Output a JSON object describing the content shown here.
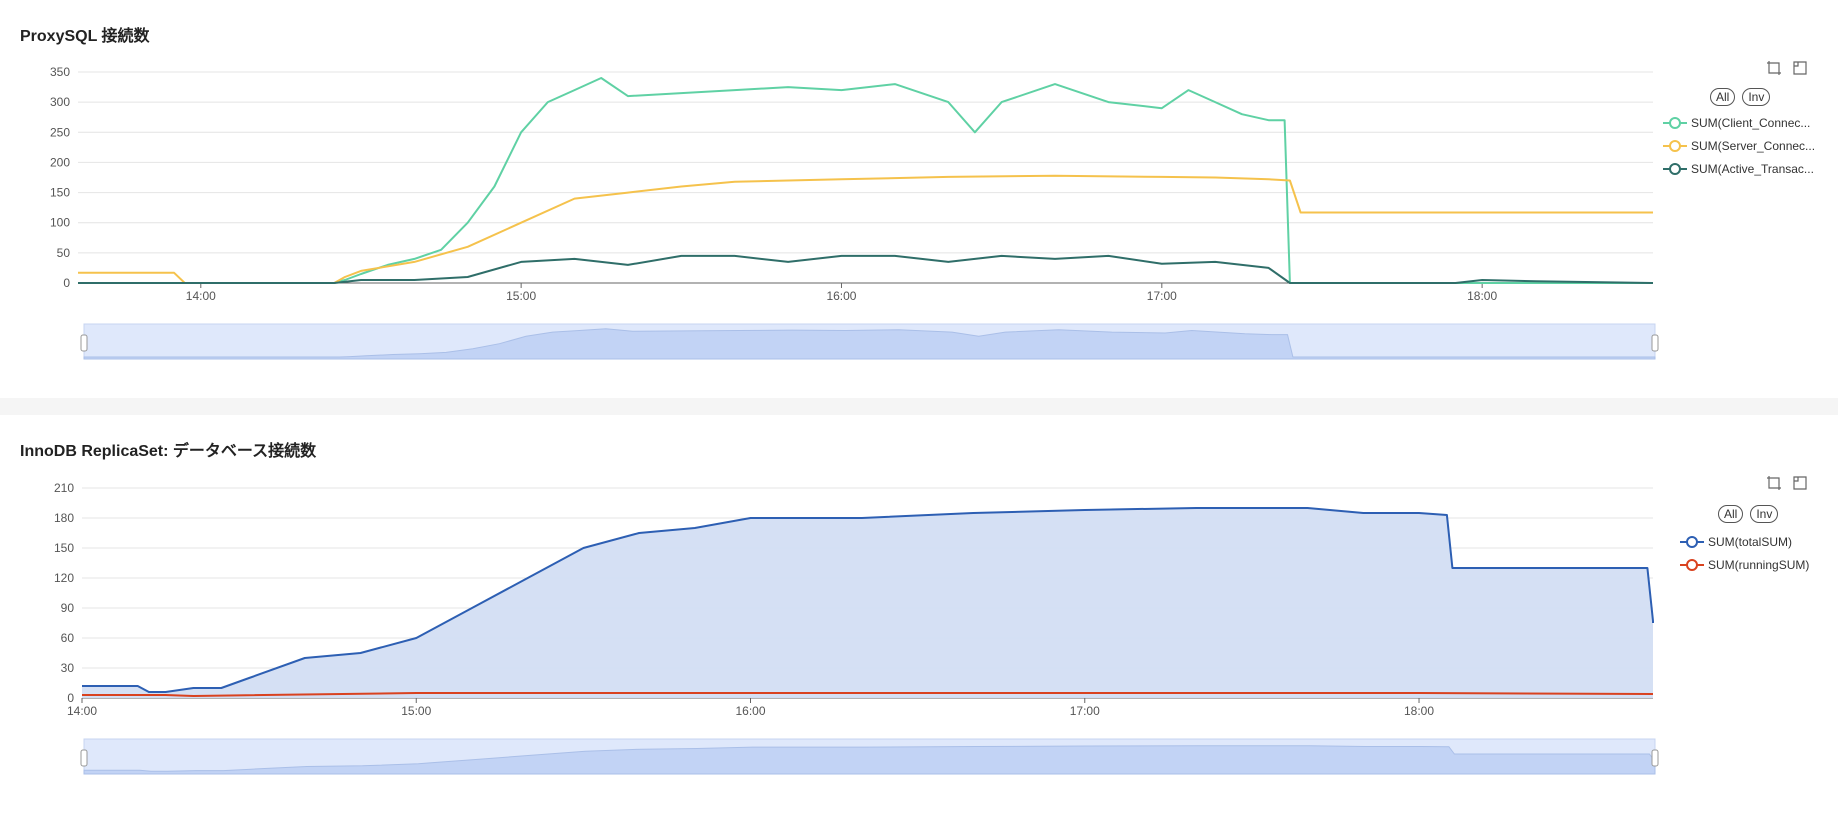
{
  "panels": [
    {
      "title": "ProxySQL 接続数",
      "legend_buttons": {
        "all": "All",
        "inv": "Inv"
      },
      "toolbox": [
        "zoom-icon",
        "zoom-reset-icon"
      ]
    },
    {
      "title": "InnoDB ReplicaSet: データベース接続数",
      "legend_buttons": {
        "all": "All",
        "inv": "Inv"
      },
      "toolbox": [
        "zoom-icon",
        "zoom-reset-icon"
      ]
    }
  ],
  "chart_data": [
    {
      "type": "line",
      "title": "ProxySQL 接続数",
      "x_ticks": [
        "14:00",
        "15:00",
        "16:00",
        "17:00",
        "18:00"
      ],
      "x_range": [
        "13:37",
        "18:32"
      ],
      "ylim": [
        0,
        350
      ],
      "y_ticks": [
        0,
        50,
        100,
        150,
        200,
        250,
        300,
        350
      ],
      "grid": true,
      "legend_position": "right",
      "dataZoom": true,
      "series": [
        {
          "name": "SUM(Client_Connec...",
          "color": "#5fd1a4",
          "points": [
            [
              "13:37",
              0
            ],
            [
              "14:25",
              0
            ],
            [
              "14:27",
              5
            ],
            [
              "14:30",
              15
            ],
            [
              "14:35",
              30
            ],
            [
              "14:40",
              40
            ],
            [
              "14:45",
              55
            ],
            [
              "14:50",
              100
            ],
            [
              "14:55",
              160
            ],
            [
              "15:00",
              250
            ],
            [
              "15:05",
              300
            ],
            [
              "15:10",
              320
            ],
            [
              "15:15",
              340
            ],
            [
              "15:20",
              310
            ],
            [
              "15:30",
              315
            ],
            [
              "15:40",
              320
            ],
            [
              "15:50",
              325
            ],
            [
              "16:00",
              320
            ],
            [
              "16:10",
              330
            ],
            [
              "16:20",
              300
            ],
            [
              "16:25",
              250
            ],
            [
              "16:30",
              300
            ],
            [
              "16:40",
              330
            ],
            [
              "16:50",
              300
            ],
            [
              "17:00",
              290
            ],
            [
              "17:05",
              320
            ],
            [
              "17:10",
              300
            ],
            [
              "17:15",
              280
            ],
            [
              "17:20",
              270
            ],
            [
              "17:23",
              270
            ],
            [
              "17:24",
              0
            ],
            [
              "18:32",
              0
            ]
          ]
        },
        {
          "name": "SUM(Server_Connec...",
          "color": "#f5c24c",
          "points": [
            [
              "13:37",
              17
            ],
            [
              "13:55",
              17
            ],
            [
              "13:57",
              0
            ],
            [
              "14:25",
              0
            ],
            [
              "14:27",
              10
            ],
            [
              "14:30",
              20
            ],
            [
              "14:40",
              35
            ],
            [
              "14:50",
              60
            ],
            [
              "15:00",
              100
            ],
            [
              "15:10",
              140
            ],
            [
              "15:20",
              150
            ],
            [
              "15:30",
              160
            ],
            [
              "15:40",
              168
            ],
            [
              "16:00",
              172
            ],
            [
              "16:20",
              176
            ],
            [
              "16:40",
              178
            ],
            [
              "17:00",
              176
            ],
            [
              "17:10",
              175
            ],
            [
              "17:20",
              172
            ],
            [
              "17:24",
              170
            ],
            [
              "17:26",
              117
            ],
            [
              "18:32",
              117
            ]
          ]
        },
        {
          "name": "SUM(Active_Transac...",
          "color": "#2f6e69",
          "points": [
            [
              "13:37",
              0
            ],
            [
              "14:25",
              0
            ],
            [
              "14:30",
              5
            ],
            [
              "14:40",
              5
            ],
            [
              "14:50",
              10
            ],
            [
              "15:00",
              35
            ],
            [
              "15:10",
              40
            ],
            [
              "15:20",
              30
            ],
            [
              "15:30",
              45
            ],
            [
              "15:40",
              45
            ],
            [
              "15:50",
              35
            ],
            [
              "16:00",
              45
            ],
            [
              "16:10",
              45
            ],
            [
              "16:20",
              35
            ],
            [
              "16:30",
              45
            ],
            [
              "16:40",
              40
            ],
            [
              "16:50",
              45
            ],
            [
              "17:00",
              32
            ],
            [
              "17:10",
              35
            ],
            [
              "17:20",
              25
            ],
            [
              "17:24",
              0
            ],
            [
              "17:55",
              0
            ],
            [
              "18:00",
              5
            ],
            [
              "18:10",
              3
            ],
            [
              "18:32",
              0
            ]
          ]
        }
      ]
    },
    {
      "type": "area",
      "title": "InnoDB ReplicaSet: データベース接続数",
      "x_ticks": [
        "14:00",
        "15:00",
        "16:00",
        "17:00",
        "18:00"
      ],
      "x_range": [
        "14:00",
        "18:42"
      ],
      "ylim": [
        0,
        210
      ],
      "y_ticks": [
        0,
        30,
        60,
        90,
        120,
        150,
        180,
        210
      ],
      "grid": true,
      "legend_position": "right",
      "dataZoom": true,
      "series": [
        {
          "name": "SUM(totalSUM)",
          "color": "#2d5fb3",
          "fill": "#d3def3",
          "points": [
            [
              "14:00",
              12
            ],
            [
              "14:05",
              12
            ],
            [
              "14:10",
              12
            ],
            [
              "14:12",
              6
            ],
            [
              "14:15",
              6
            ],
            [
              "14:20",
              10
            ],
            [
              "14:25",
              10
            ],
            [
              "14:30",
              20
            ],
            [
              "14:40",
              40
            ],
            [
              "14:50",
              45
            ],
            [
              "15:00",
              60
            ],
            [
              "15:10",
              90
            ],
            [
              "15:20",
              120
            ],
            [
              "15:30",
              150
            ],
            [
              "15:40",
              165
            ],
            [
              "15:50",
              170
            ],
            [
              "16:00",
              180
            ],
            [
              "16:20",
              180
            ],
            [
              "16:40",
              185
            ],
            [
              "17:00",
              188
            ],
            [
              "17:20",
              190
            ],
            [
              "17:40",
              190
            ],
            [
              "17:50",
              185
            ],
            [
              "18:00",
              185
            ],
            [
              "18:05",
              183
            ],
            [
              "18:06",
              130
            ],
            [
              "18:30",
              130
            ],
            [
              "18:41",
              130
            ],
            [
              "18:42",
              77
            ],
            [
              "18:42",
              75
            ]
          ]
        },
        {
          "name": "SUM(runningSUM)",
          "color": "#d9421f",
          "points": [
            [
              "14:00",
              3
            ],
            [
              "14:15",
              3
            ],
            [
              "14:20",
              2
            ],
            [
              "15:00",
              5
            ],
            [
              "16:00",
              5
            ],
            [
              "17:00",
              5
            ],
            [
              "18:00",
              5
            ],
            [
              "18:42",
              4
            ]
          ]
        }
      ]
    }
  ]
}
